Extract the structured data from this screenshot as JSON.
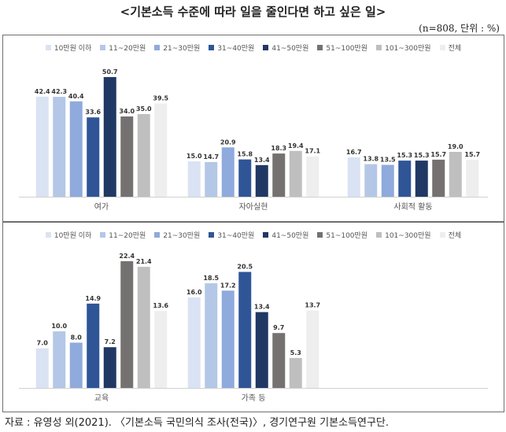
{
  "title": "<기본소득 수준에 따라 일을 줄인다면 하고 싶은 일>",
  "note": "(n=808, 단위 : %)",
  "source": "자료 : 유영성 외(2021). 〈기본소득 국민의식 조사(전국)〉, 경기연구원 기본소득연구단.",
  "colors": [
    "#dae3f3",
    "#b4c7e7",
    "#8faadc",
    "#2f5597",
    "#203864",
    "#767171",
    "#bfbfbf",
    "#eeeeee"
  ],
  "chart_data": [
    {
      "type": "bar",
      "ylim": [
        0,
        55
      ],
      "categories": [
        "여가",
        "자아실현",
        "사회적 활동"
      ],
      "series": [
        {
          "name": "10만원 이하",
          "values": [
            42.4,
            15.0,
            16.7
          ]
        },
        {
          "name": "11~20만원",
          "values": [
            42.3,
            14.7,
            13.8
          ]
        },
        {
          "name": "21~30만원",
          "values": [
            40.4,
            20.9,
            13.5
          ]
        },
        {
          "name": "31~40만원",
          "values": [
            33.6,
            15.8,
            15.3
          ]
        },
        {
          "name": "41~50만원",
          "values": [
            50.7,
            13.4,
            15.3
          ]
        },
        {
          "name": "51~100만원",
          "values": [
            34.0,
            18.3,
            15.7
          ]
        },
        {
          "name": "101~300만원",
          "values": [
            35.0,
            19.4,
            19.0
          ]
        },
        {
          "name": "전체",
          "values": [
            39.5,
            17.1,
            15.7
          ]
        }
      ]
    },
    {
      "type": "bar",
      "ylim": [
        0,
        26
      ],
      "categories": [
        "교육",
        "가족 등"
      ],
      "series": [
        {
          "name": "10만원 이하",
          "values": [
            7.0,
            16.0
          ]
        },
        {
          "name": "11~20만원",
          "values": [
            10.0,
            18.5
          ]
        },
        {
          "name": "21~30만원",
          "values": [
            8.0,
            17.2
          ]
        },
        {
          "name": "31~40만원",
          "values": [
            14.9,
            20.5
          ]
        },
        {
          "name": "41~50만원",
          "values": [
            7.2,
            13.4
          ]
        },
        {
          "name": "51~100만원",
          "values": [
            22.4,
            9.7
          ]
        },
        {
          "name": "101~300만원",
          "values": [
            21.4,
            5.3
          ]
        },
        {
          "name": "전체",
          "values": [
            13.6,
            13.7
          ]
        }
      ]
    }
  ]
}
